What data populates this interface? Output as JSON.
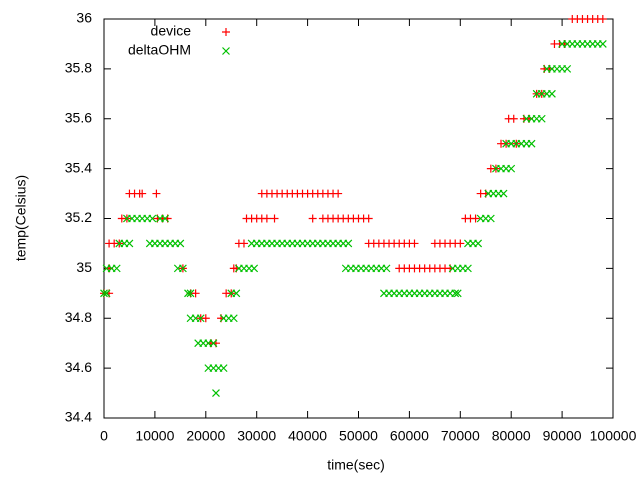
{
  "chart_data": {
    "type": "scatter",
    "x_label": "time(sec)",
    "y_label": "temp(Celsius)",
    "xlim": [
      0,
      100000
    ],
    "xticks": [
      0,
      10000,
      20000,
      30000,
      40000,
      50000,
      60000,
      70000,
      80000,
      90000,
      100000
    ],
    "ylim": [
      34.4,
      36
    ],
    "yticks": [
      34.4,
      34.6,
      34.8,
      35,
      35.2,
      35.4,
      35.6,
      35.8,
      36
    ],
    "grid": false,
    "legend": "top-left",
    "series": [
      {
        "name": "device",
        "color": "#ff0000",
        "marker": "plus",
        "x": [
          0,
          1000,
          1000,
          1000,
          2000,
          3000,
          3500,
          4500,
          5000,
          6000,
          7000,
          7500,
          10300,
          10500,
          11500,
          12500,
          15500,
          17000,
          18000,
          19000,
          20000,
          21000,
          22000,
          23000,
          24000,
          25000,
          25500,
          26000,
          26500,
          27500,
          28000,
          29000,
          30000,
          31000,
          32000,
          33500,
          31000,
          32000,
          33000,
          34000,
          35000,
          36000,
          37000,
          38000,
          39000,
          40000,
          41000,
          42000,
          43000,
          44000,
          45000,
          46000,
          41000,
          43000,
          44000,
          45000,
          46000,
          47000,
          48000,
          49000,
          50000,
          51000,
          52000,
          52000,
          53000,
          54000,
          55000,
          56000,
          57000,
          58000,
          59000,
          60000,
          61000,
          58000,
          59000,
          60000,
          61000,
          62000,
          63000,
          64000,
          65000,
          66000,
          67000,
          68000,
          65000,
          66000,
          67000,
          68000,
          69000,
          70000,
          71000,
          72000,
          73000,
          74000,
          75000,
          76000,
          77000,
          78000,
          79000,
          79500,
          80500,
          81000,
          82500,
          83500,
          85000,
          86000,
          86500,
          87500,
          88500,
          89500,
          90500,
          92000,
          93000,
          94000,
          95000,
          96000,
          97000,
          98000
        ],
        "values": [
          34.9,
          34.9,
          35,
          35.1,
          35.1,
          35.1,
          35.2,
          35.2,
          35.3,
          35.3,
          35.3,
          35.3,
          35.3,
          35.2,
          35.2,
          35.2,
          35,
          34.9,
          34.9,
          34.8,
          34.8,
          34.7,
          34.7,
          34.8,
          34.9,
          34.9,
          35,
          35,
          35.1,
          35.1,
          35.2,
          35.2,
          35.2,
          35.2,
          35.2,
          35.2,
          35.3,
          35.3,
          35.3,
          35.3,
          35.3,
          35.3,
          35.3,
          35.3,
          35.3,
          35.3,
          35.3,
          35.3,
          35.3,
          35.3,
          35.3,
          35.3,
          35.2,
          35.2,
          35.2,
          35.2,
          35.2,
          35.2,
          35.2,
          35.2,
          35.2,
          35.2,
          35.2,
          35.1,
          35.1,
          35.1,
          35.1,
          35.1,
          35.1,
          35.1,
          35.1,
          35.1,
          35.1,
          35,
          35,
          35,
          35,
          35,
          35,
          35,
          35,
          35,
          35,
          35,
          35.1,
          35.1,
          35.1,
          35.1,
          35.1,
          35.1,
          35.2,
          35.2,
          35.2,
          35.3,
          35.3,
          35.4,
          35.4,
          35.5,
          35.5,
          35.6,
          35.6,
          35.5,
          35.6,
          35.6,
          35.7,
          35.7,
          35.8,
          35.8,
          35.9,
          35.9,
          35.9,
          36,
          36,
          36,
          36,
          36,
          36,
          36
        ]
      },
      {
        "name": "deltaOHM",
        "color": "#00c000",
        "marker": "cross",
        "x": [
          0,
          500,
          500,
          1500,
          2500,
          3000,
          4000,
          5000,
          4500,
          5500,
          6500,
          7500,
          8500,
          9500,
          11000,
          12000,
          9000,
          10000,
          11000,
          12000,
          13000,
          14000,
          15000,
          14500,
          15500,
          16500,
          17000,
          17000,
          18000,
          19000,
          18500,
          19500,
          20500,
          21500,
          20500,
          21500,
          22500,
          23500,
          22000,
          23500,
          24500,
          25500,
          25000,
          26000,
          26500,
          27500,
          28500,
          29500,
          29000,
          30000,
          31000,
          32000,
          33000,
          34000,
          35000,
          36000,
          37000,
          38000,
          39000,
          40000,
          41000,
          42000,
          43000,
          44000,
          45000,
          46000,
          47000,
          48000,
          47500,
          48500,
          49500,
          50500,
          51500,
          52500,
          53500,
          54500,
          55500,
          55000,
          56000,
          57000,
          58000,
          59000,
          60000,
          61000,
          62000,
          63000,
          64000,
          65000,
          66000,
          67000,
          68000,
          69000,
          69500,
          68500,
          69500,
          70500,
          71500,
          71500,
          72500,
          73500,
          74000,
          75000,
          76000,
          75500,
          76500,
          77500,
          78500,
          77000,
          78000,
          79000,
          80000,
          79000,
          80000,
          81000,
          82000,
          83000,
          84000,
          83000,
          84000,
          85000,
          86000,
          85000,
          86000,
          87000,
          88000,
          87000,
          88000,
          89000,
          90000,
          91000,
          90000,
          91000,
          92000,
          93000,
          94000,
          95000,
          96000,
          97000,
          98000
        ],
        "values": [
          34.9,
          34.9,
          35,
          35,
          35,
          35.1,
          35.1,
          35.1,
          35.2,
          35.2,
          35.2,
          35.2,
          35.2,
          35.2,
          35.2,
          35.2,
          35.1,
          35.1,
          35.1,
          35.1,
          35.1,
          35.1,
          35.1,
          35,
          35,
          34.9,
          34.9,
          34.8,
          34.8,
          34.8,
          34.7,
          34.7,
          34.7,
          34.7,
          34.6,
          34.6,
          34.6,
          34.6,
          34.5,
          34.8,
          34.8,
          34.8,
          34.9,
          34.9,
          35,
          35,
          35,
          35,
          35.1,
          35.1,
          35.1,
          35.1,
          35.1,
          35.1,
          35.1,
          35.1,
          35.1,
          35.1,
          35.1,
          35.1,
          35.1,
          35.1,
          35.1,
          35.1,
          35.1,
          35.1,
          35.1,
          35.1,
          35,
          35,
          35,
          35,
          35,
          35,
          35,
          35,
          35,
          34.9,
          34.9,
          34.9,
          34.9,
          34.9,
          34.9,
          34.9,
          34.9,
          34.9,
          34.9,
          34.9,
          34.9,
          34.9,
          34.9,
          34.9,
          34.9,
          35,
          35,
          35,
          35,
          35.1,
          35.1,
          35.1,
          35.2,
          35.2,
          35.2,
          35.3,
          35.3,
          35.3,
          35.3,
          35.4,
          35.4,
          35.4,
          35.4,
          35.5,
          35.5,
          35.5,
          35.5,
          35.5,
          35.5,
          35.6,
          35.6,
          35.6,
          35.6,
          35.7,
          35.7,
          35.7,
          35.7,
          35.8,
          35.8,
          35.8,
          35.8,
          35.8,
          35.9,
          35.9,
          35.9,
          35.9,
          35.9,
          35.9,
          35.9,
          35.9,
          35.9
        ]
      }
    ]
  }
}
